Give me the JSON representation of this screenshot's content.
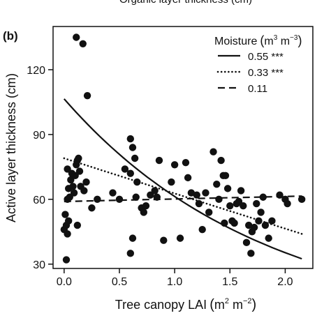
{
  "top_cropped_label": "Organic layer thickness (cm)",
  "chart_data": {
    "type": "scatter",
    "panel_label": "(b)",
    "xlabel": "Tree canopy LAI",
    "xlabel_unit_base1": "m",
    "xlabel_unit_exp1": "2",
    "xlabel_unit_base2": " m",
    "xlabel_unit_exp2": "−2",
    "ylabel": "Active layer thickness (cm)",
    "xlim": [
      -0.1,
      2.25
    ],
    "ylim": [
      28,
      140
    ],
    "xticks": [
      0.0,
      0.5,
      1.0,
      1.5,
      2.0
    ],
    "xtick_labels": [
      "0.0",
      "0.5",
      "1.0",
      "1.5",
      "2.0"
    ],
    "yticks": [
      30,
      60,
      90,
      120
    ],
    "ytick_labels": [
      "30",
      "60",
      "90",
      "120"
    ],
    "grid": false,
    "legend": {
      "placement": "top-right",
      "title": "Moisture",
      "title_unit_base1": "m",
      "title_unit_exp1": "3",
      "title_unit_base2": " m",
      "title_unit_exp2": "−3",
      "entries": [
        {
          "label": "0.55 ***",
          "style": "solid"
        },
        {
          "label": "0.33 ***",
          "style": "dotted"
        },
        {
          "label": "0.11",
          "style": "dashed"
        }
      ]
    },
    "points": [
      [
        0.11,
        135
      ],
      [
        0.17,
        132
      ],
      [
        0.21,
        108
      ],
      [
        0.02,
        32
      ],
      [
        0.0,
        46
      ],
      [
        0.02,
        48
      ],
      [
        0.03,
        44
      ],
      [
        0.04,
        50
      ],
      [
        0.01,
        53
      ],
      [
        0.03,
        60
      ],
      [
        0.05,
        61
      ],
      [
        0.04,
        65
      ],
      [
        0.06,
        69
      ],
      [
        0.03,
        74
      ],
      [
        0.07,
        72
      ],
      [
        0.08,
        66
      ],
      [
        0.09,
        63
      ],
      [
        0.1,
        71
      ],
      [
        0.11,
        76
      ],
      [
        0.12,
        78
      ],
      [
        0.13,
        79
      ],
      [
        0.14,
        73
      ],
      [
        0.15,
        66
      ],
      [
        0.18,
        64
      ],
      [
        0.2,
        68
      ],
      [
        0.12,
        48
      ],
      [
        0.25,
        56
      ],
      [
        0.3,
        60
      ],
      [
        0.44,
        63
      ],
      [
        0.5,
        60
      ],
      [
        0.55,
        74
      ],
      [
        0.6,
        88
      ],
      [
        0.62,
        84
      ],
      [
        0.64,
        79
      ],
      [
        0.6,
        72
      ],
      [
        0.66,
        68
      ],
      [
        0.65,
        61
      ],
      [
        0.7,
        56
      ],
      [
        0.72,
        54
      ],
      [
        0.74,
        57
      ],
      [
        0.62,
        42
      ],
      [
        0.6,
        35
      ],
      [
        0.78,
        62
      ],
      [
        0.84,
        61
      ],
      [
        0.86,
        78
      ],
      [
        0.82,
        64
      ],
      [
        0.9,
        41
      ],
      [
        0.97,
        68
      ],
      [
        1.0,
        76
      ],
      [
        1.05,
        42
      ],
      [
        1.1,
        77
      ],
      [
        1.12,
        70
      ],
      [
        1.15,
        63
      ],
      [
        1.2,
        62
      ],
      [
        1.22,
        58
      ],
      [
        1.25,
        46
      ],
      [
        1.28,
        63
      ],
      [
        1.31,
        54
      ],
      [
        1.35,
        82
      ],
      [
        1.38,
        67
      ],
      [
        1.4,
        60
      ],
      [
        1.42,
        78
      ],
      [
        1.44,
        71
      ],
      [
        1.46,
        71
      ],
      [
        1.48,
        65
      ],
      [
        1.5,
        57
      ],
      [
        1.52,
        50
      ],
      [
        1.54,
        49
      ],
      [
        1.56,
        58
      ],
      [
        1.58,
        59
      ],
      [
        1.6,
        64
      ],
      [
        1.62,
        57
      ],
      [
        1.65,
        40
      ],
      [
        1.67,
        48
      ],
      [
        1.69,
        35
      ],
      [
        1.7,
        45
      ],
      [
        1.72,
        47
      ],
      [
        1.74,
        58
      ],
      [
        1.76,
        50
      ],
      [
        1.78,
        54
      ],
      [
        1.8,
        61
      ],
      [
        1.82,
        48
      ],
      [
        1.85,
        42
      ],
      [
        1.88,
        50
      ],
      [
        2.0,
        60
      ],
      [
        2.15,
        60
      ],
      [
        1.95,
        62
      ],
      [
        2.02,
        58
      ],
      [
        1.45,
        49
      ]
    ],
    "series": [
      {
        "name": "0.55 ***",
        "style": "solid",
        "x": [
          0.0,
          2.15
        ],
        "y": [
          106.5,
          32.5
        ],
        "curve": "exponential"
      },
      {
        "name": "0.33 ***",
        "style": "dotted",
        "x": [
          0.0,
          2.15
        ],
        "y": [
          79,
          44
        ],
        "curve": "linear"
      },
      {
        "name": "0.11",
        "style": "dashed",
        "x": [
          0.0,
          2.15
        ],
        "y": [
          59,
          61.5
        ],
        "curve": "linear"
      }
    ]
  }
}
